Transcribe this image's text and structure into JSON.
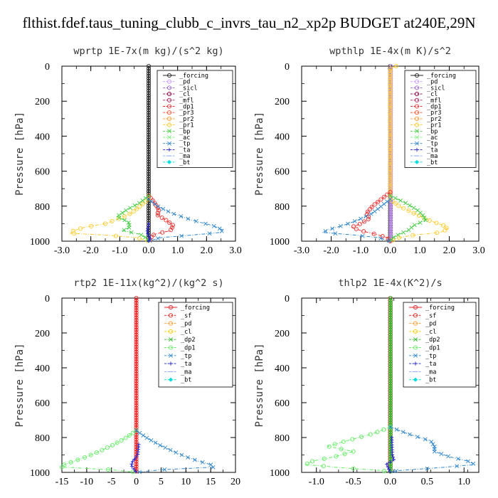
{
  "title": "flthist.fdef.taus_tuning_clubb_c_invrs_tau_n2_xp2p  BUDGET at240E,29N",
  "colors": {
    "forcing": "#222222",
    "pd": "#cc99ff",
    "sicl": "#9966cc",
    "cl": "#880044",
    "mfl": "#aa2255",
    "dp1": "#ee3333",
    "pr3": "#ff5533",
    "pr2": "#ff9933",
    "pr1": "#ffcc33",
    "bp": "#44cc44",
    "ac": "#88ee88",
    "tp": "#3388cc",
    "ta": "#2222cc",
    "ma": "#88aaee",
    "bt": "#00dddd",
    "sf": "#ee2222",
    "cl_y": "#ffcc00",
    "dp2": "#33bb33",
    "dp1_g": "#66ee66"
  },
  "chart_data": [
    {
      "type": "line",
      "title": "wprtp   1E-7x(m kg)/(s^2 kg)",
      "ylabel": "Pressure [hPa]",
      "xlim": [
        -3.0,
        3.0
      ],
      "ylim": [
        1000,
        0
      ],
      "xticks": [
        "-3.0",
        "-2.0",
        "-1.0",
        "0.0",
        "1.0",
        "2.0",
        "3.0"
      ],
      "xtick_values": [
        -3,
        -2,
        -1,
        0,
        1,
        2,
        3
      ],
      "yticks": [
        "0",
        "200",
        "400",
        "600",
        "800",
        "1000"
      ],
      "ytick_values": [
        0,
        200,
        400,
        600,
        800,
        1000
      ],
      "legend": [
        "_forcing",
        "_pd",
        "_sicl",
        "_cl",
        "_mfl",
        "_dp1",
        "_pr3",
        "_pr2",
        "_pr1",
        "_bp",
        "_ac",
        "_tp",
        "_ta",
        "_ma",
        "_bt"
      ],
      "series": [
        {
          "key": "_forcing",
          "color": "#222222",
          "marker": "o",
          "y": [
            0,
            1000
          ],
          "x": [
            0,
            0
          ]
        },
        {
          "key": "_dp1",
          "color": "#ee3333",
          "marker": "o",
          "y": [
            740,
            780,
            820,
            850,
            880,
            910,
            940,
            960,
            975,
            990,
            1000
          ],
          "x": [
            0.0,
            0.2,
            0.35,
            0.3,
            0.6,
            0.85,
            0.75,
            0.2,
            0.1,
            0.05,
            0.0
          ]
        },
        {
          "key": "_pr1",
          "color": "#ffcc33",
          "marker": "o",
          "y": [
            760,
            800,
            840,
            870,
            900,
            920,
            940,
            955,
            965,
            980,
            1000
          ],
          "x": [
            0.0,
            -0.3,
            -0.6,
            -1.0,
            -1.5,
            -2.2,
            -2.6,
            -2.7,
            -1.5,
            -0.4,
            0.0
          ]
        },
        {
          "key": "_bp",
          "color": "#44cc44",
          "marker": "x",
          "y": [
            740,
            780,
            820,
            860,
            890,
            920,
            940,
            960,
            980,
            1000
          ],
          "x": [
            0.0,
            -0.3,
            -0.75,
            -1.1,
            -0.7,
            -0.65,
            -0.9,
            -0.3,
            -0.1,
            0.0
          ]
        },
        {
          "key": "_tp",
          "color": "#3388cc",
          "marker": "x",
          "y": [
            760,
            800,
            840,
            880,
            910,
            935,
            950,
            965,
            980,
            1000
          ],
          "x": [
            0.0,
            0.3,
            0.8,
            1.5,
            2.2,
            2.55,
            2.5,
            1.5,
            0.4,
            0.0
          ]
        },
        {
          "key": "_ta",
          "color": "#2222cc",
          "marker": "+",
          "y": [
            900,
            950,
            980,
            1000
          ],
          "x": [
            0.0,
            -0.05,
            0.05,
            0.0
          ]
        }
      ]
    },
    {
      "type": "line",
      "title": "wpthlp   1E-4x(m K)/s^2",
      "ylabel": "Pressure [hPa]",
      "xlim": [
        -3.0,
        3.0
      ],
      "ylim": [
        1000,
        0
      ],
      "xticks": [
        "-3.0",
        "-2.0",
        "-1.0",
        "0.0",
        "1.0",
        "2.0",
        "3.0"
      ],
      "xtick_values": [
        -3,
        -2,
        -1,
        0,
        1,
        2,
        3
      ],
      "yticks": [
        "0",
        "200",
        "400",
        "600",
        "800",
        "1000"
      ],
      "ytick_values": [
        0,
        200,
        400,
        600,
        800,
        1000
      ],
      "legend": [
        "_forcing",
        "_pd",
        "_sicl",
        "_cl",
        "_mfl",
        "_dp1",
        "_pr3",
        "_pr2",
        "_pr1",
        "_bp",
        "_ac",
        "_tp",
        "_ta",
        "_ma",
        "_bt"
      ],
      "series": [
        {
          "key": "_forcing",
          "color": "#222222",
          "marker": "o",
          "y": [
            0,
            1000
          ],
          "x": [
            0,
            0
          ]
        },
        {
          "key": "_pd",
          "color": "#cc99ff",
          "marker": "o",
          "y": [
            0,
            1000
          ],
          "x": [
            0.02,
            0.02
          ]
        },
        {
          "key": "_pr1",
          "color": "#ffcc33",
          "marker": "o",
          "y": [
            0,
            15,
            760,
            800,
            840,
            880,
            910,
            930,
            950,
            965,
            980,
            1000
          ],
          "x": [
            0.2,
            0.0,
            0.0,
            0.3,
            0.8,
            1.3,
            1.8,
            1.95,
            1.7,
            0.8,
            0.3,
            0.0
          ]
        },
        {
          "key": "_dp1",
          "color": "#ee3333",
          "marker": "o",
          "y": [
            720,
            760,
            800,
            840,
            870,
            900,
            920,
            940,
            960,
            980,
            1000
          ],
          "x": [
            0.0,
            -0.3,
            -0.6,
            -0.8,
            -0.7,
            -1.0,
            -1.3,
            -1.0,
            -0.5,
            -0.1,
            0.0
          ]
        },
        {
          "key": "_bp",
          "color": "#44cc44",
          "marker": "x",
          "y": [
            740,
            780,
            820,
            850,
            880,
            910,
            940,
            960,
            980,
            1000
          ],
          "x": [
            0.0,
            0.5,
            0.9,
            1.1,
            1.2,
            0.8,
            0.6,
            0.3,
            0.1,
            0.0
          ]
        },
        {
          "key": "_tp",
          "color": "#3388cc",
          "marker": "x",
          "y": [
            760,
            800,
            840,
            880,
            910,
            935,
            950,
            965,
            980,
            1000
          ],
          "x": [
            0.0,
            -0.3,
            -0.6,
            -1.1,
            -1.6,
            -2.1,
            -2.3,
            -1.2,
            -0.4,
            0.0
          ]
        }
      ]
    },
    {
      "type": "line",
      "title": "rtp2   1E-11x(kg^2)/(kg^2 s)",
      "ylabel": "Pressure [hPa]",
      "xlim": [
        -15,
        20
      ],
      "ylim": [
        1000,
        0
      ],
      "xticks": [
        "-15",
        "-10",
        "-5",
        "0",
        "5",
        "10",
        "15",
        "20"
      ],
      "xtick_values": [
        -15,
        -10,
        -5,
        0,
        5,
        10,
        15,
        20
      ],
      "yticks": [
        "0",
        "200",
        "400",
        "600",
        "800",
        "1000"
      ],
      "ytick_values": [
        0,
        200,
        400,
        600,
        800,
        1000
      ],
      "legend": [
        "_forcing",
        "_sf",
        "_pd",
        "_cl",
        "_dp2",
        "_dp1",
        "_tp",
        "_ta",
        "_ma",
        "_bt"
      ],
      "series": [
        {
          "key": "_forcing",
          "color": "#ee2222",
          "marker": "o",
          "y": [
            0,
            1000
          ],
          "x": [
            0,
            0
          ]
        },
        {
          "key": "_dp1",
          "color": "#66ee66",
          "marker": "o",
          "y": [
            760,
            800,
            840,
            880,
            910,
            935,
            955,
            970,
            985,
            1000
          ],
          "x": [
            0.0,
            -2.0,
            -4.5,
            -7.5,
            -10.0,
            -12.5,
            -14.5,
            -15.0,
            -5.0,
            0.0
          ]
        },
        {
          "key": "_tp",
          "color": "#3388cc",
          "marker": "x",
          "y": [
            760,
            800,
            840,
            880,
            910,
            935,
            955,
            970,
            985,
            1000
          ],
          "x": [
            0.0,
            2.0,
            4.5,
            7.5,
            10.0,
            12.5,
            15.0,
            15.5,
            5.0,
            0.0
          ]
        },
        {
          "key": "_ta",
          "color": "#2222cc",
          "marker": "+",
          "y": [
            840,
            900,
            940,
            960,
            1000
          ],
          "x": [
            0.5,
            0.3,
            -0.8,
            -1.0,
            0.0
          ]
        }
      ]
    },
    {
      "type": "line",
      "title": "thlp2   1E-4x(K^2)/s",
      "ylabel": "Pressure [hPa]",
      "xlim": [
        -1.2,
        1.2
      ],
      "ylim": [
        1000,
        0
      ],
      "xticks": [
        "-1.0",
        "-0.5",
        "0.0",
        "0.5",
        "1.0"
      ],
      "xtick_values": [
        -1.0,
        -0.5,
        0.0,
        0.5,
        1.0
      ],
      "yticks": [
        "0",
        "200",
        "400",
        "600",
        "800",
        "1000"
      ],
      "ytick_values": [
        0,
        200,
        400,
        600,
        800,
        1000
      ],
      "legend": [
        "_forcing",
        "_sf",
        "_pd",
        "_cl",
        "_dp2",
        "_dp1",
        "_tp",
        "_ta",
        "_ma",
        "_bt"
      ],
      "series": [
        {
          "key": "_forcing",
          "color": "#ee2222",
          "marker": "o",
          "y": [
            0,
            1000
          ],
          "x": [
            0,
            0
          ]
        },
        {
          "key": "_dp2",
          "color": "#33bb33",
          "marker": "o",
          "y": [
            0,
            1000
          ],
          "x": [
            0.005,
            0.005
          ]
        },
        {
          "key": "_dp1",
          "color": "#66ee66",
          "marker": "o",
          "y": [
            740,
            780,
            820,
            850,
            880,
            910,
            935,
            955,
            975,
            990,
            1000
          ],
          "x": [
            0.0,
            -0.25,
            -0.6,
            -0.85,
            -0.5,
            -0.75,
            -1.05,
            -1.15,
            -0.6,
            -0.1,
            0.0
          ]
        },
        {
          "key": "_tp",
          "color": "#3388cc",
          "marker": "x",
          "y": [
            740,
            780,
            820,
            850,
            880,
            910,
            935,
            955,
            975,
            990,
            1000
          ],
          "x": [
            0.0,
            0.25,
            0.55,
            0.6,
            0.6,
            0.8,
            1.05,
            1.15,
            0.6,
            0.1,
            0.0
          ]
        },
        {
          "key": "_ta",
          "color": "#2222cc",
          "marker": "+",
          "y": [
            800,
            900,
            930,
            950,
            1000
          ],
          "x": [
            0.02,
            0.03,
            0.05,
            -0.05,
            0.0
          ]
        }
      ]
    }
  ]
}
